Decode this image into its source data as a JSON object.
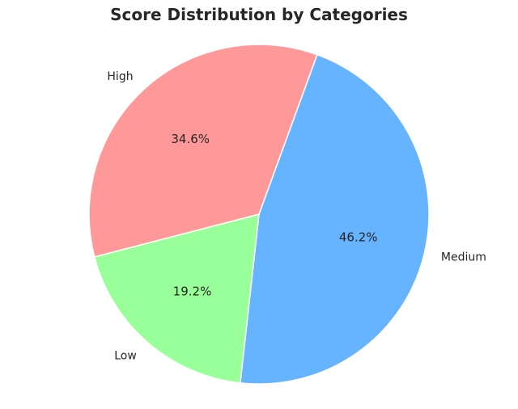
{
  "chart_data": {
    "type": "pie",
    "title": "Score Distribution by Categories",
    "categories": [
      "Medium",
      "Low",
      "High"
    ],
    "values": [
      46.2,
      19.2,
      34.6
    ],
    "percent_labels": [
      "46.2%",
      "19.2%",
      "34.6%"
    ],
    "colors": [
      "#66b3ff",
      "#99ff99",
      "#ff9999"
    ],
    "start_angle_deg": 70,
    "direction": "clockwise",
    "legend": "none"
  }
}
